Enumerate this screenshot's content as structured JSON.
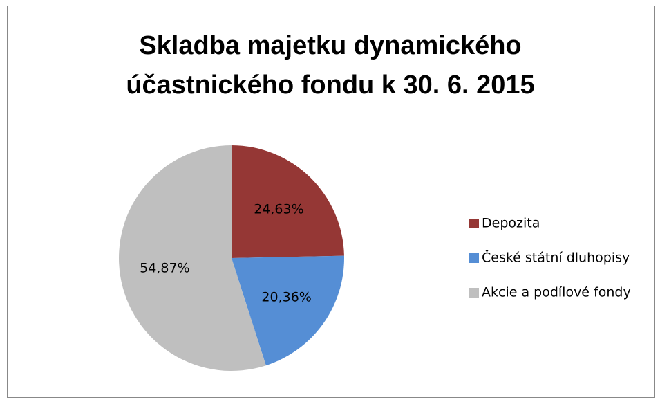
{
  "chart_data": {
    "type": "pie",
    "title": [
      "Skladba majetku dynamického",
      "účastnického fondu k 30. 6. 2015"
    ],
    "categories": [
      "Depozita",
      "České státní dluhopisy",
      "Akcie a podílové fondy"
    ],
    "values": [
      24.63,
      20.36,
      54.87
    ],
    "value_labels": [
      "24,63%",
      "20,36%",
      "54,87%"
    ],
    "colors": [
      "#953735",
      "#558ed5",
      "#bfbfbf"
    ],
    "legend": "right"
  }
}
